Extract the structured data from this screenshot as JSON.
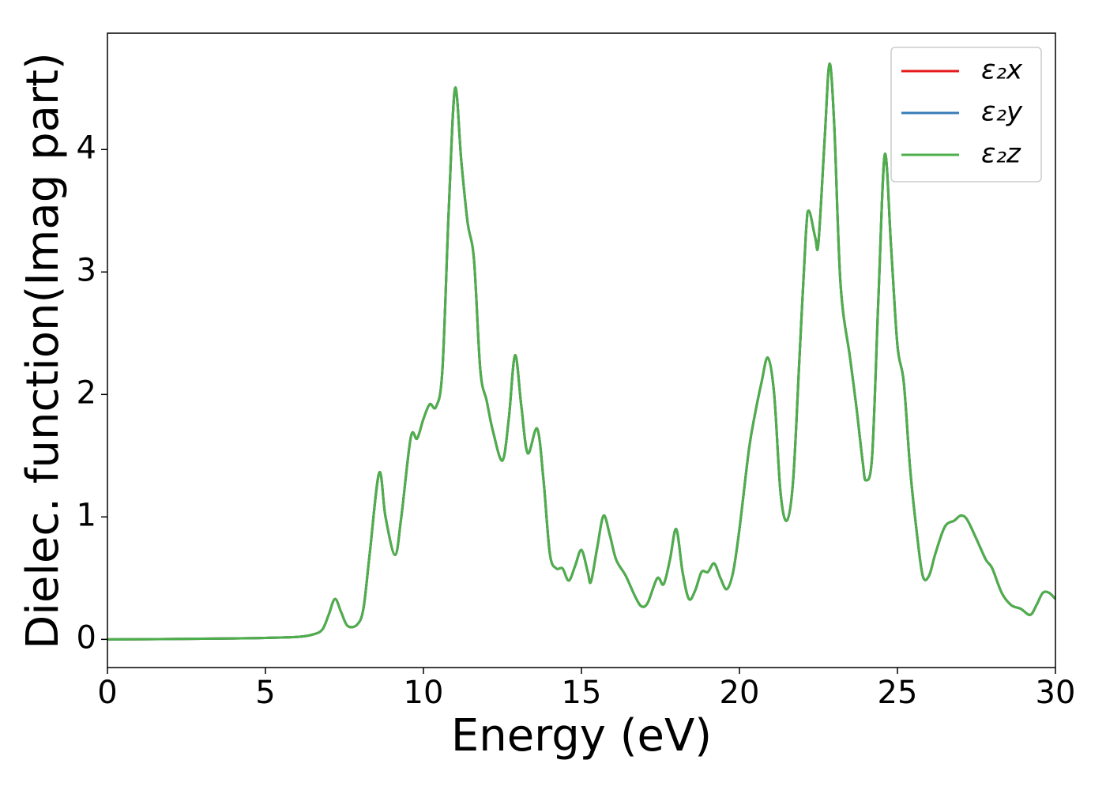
{
  "chart_data": {
    "type": "line",
    "xlabel": "Energy (eV)",
    "ylabel": "Dielec. function(Imag part)",
    "x": [
      0,
      2,
      4,
      5,
      6,
      6.5,
      6.8,
      7.0,
      7.2,
      7.4,
      7.6,
      7.9,
      8.1,
      8.3,
      8.6,
      8.8,
      9.1,
      9.3,
      9.6,
      9.8,
      10.0,
      10.2,
      10.4,
      10.6,
      10.8,
      11.0,
      11.2,
      11.4,
      11.6,
      11.8,
      12.0,
      12.2,
      12.5,
      12.7,
      12.9,
      13.1,
      13.3,
      13.6,
      13.8,
      14.0,
      14.2,
      14.4,
      14.6,
      14.8,
      15.0,
      15.2,
      15.3,
      15.5,
      15.7,
      15.9,
      16.1,
      16.4,
      16.7,
      16.9,
      17.1,
      17.4,
      17.6,
      17.8,
      18.0,
      18.2,
      18.4,
      18.6,
      18.8,
      19.0,
      19.2,
      19.4,
      19.6,
      19.8,
      20.0,
      20.3,
      20.5,
      20.7,
      20.9,
      21.1,
      21.3,
      21.5,
      21.7,
      21.9,
      22.1,
      22.2,
      22.4,
      22.5,
      22.7,
      22.85,
      23.0,
      23.2,
      23.5,
      23.7,
      23.9,
      24.0,
      24.2,
      24.4,
      24.6,
      24.8,
      25.0,
      25.2,
      25.4,
      25.6,
      25.8,
      26.0,
      26.2,
      26.5,
      26.8,
      27.0,
      27.2,
      27.5,
      27.8,
      28.0,
      28.3,
      28.6,
      28.9,
      29.2,
      29.4,
      29.6,
      29.8,
      30.0
    ],
    "series": [
      {
        "name": "ε₂x",
        "color": "#e41a1c",
        "values": [
          0,
          0.003,
          0.008,
          0.012,
          0.02,
          0.04,
          0.08,
          0.2,
          0.33,
          0.22,
          0.11,
          0.12,
          0.25,
          0.7,
          1.36,
          1.0,
          0.69,
          1.0,
          1.65,
          1.64,
          1.8,
          1.92,
          1.9,
          2.2,
          3.5,
          4.5,
          3.9,
          3.4,
          3.1,
          2.2,
          1.95,
          1.7,
          1.46,
          1.8,
          2.32,
          1.9,
          1.52,
          1.72,
          1.3,
          0.7,
          0.58,
          0.58,
          0.48,
          0.6,
          0.73,
          0.55,
          0.47,
          0.75,
          1.01,
          0.85,
          0.65,
          0.52,
          0.35,
          0.27,
          0.3,
          0.5,
          0.45,
          0.65,
          0.9,
          0.55,
          0.33,
          0.4,
          0.55,
          0.55,
          0.62,
          0.5,
          0.41,
          0.55,
          0.9,
          1.55,
          1.85,
          2.1,
          2.3,
          2.0,
          1.2,
          0.97,
          1.3,
          2.3,
          3.3,
          3.5,
          3.28,
          3.24,
          4.1,
          4.7,
          4.2,
          2.9,
          2.3,
          1.9,
          1.45,
          1.3,
          1.5,
          2.8,
          3.96,
          3.2,
          2.4,
          2.1,
          1.4,
          0.9,
          0.52,
          0.52,
          0.7,
          0.92,
          0.97,
          1.01,
          0.98,
          0.82,
          0.65,
          0.58,
          0.38,
          0.28,
          0.25,
          0.2,
          0.28,
          0.38,
          0.38,
          0.33
        ]
      },
      {
        "name": "ε₂y",
        "color": "#377eb8",
        "values": [
          0,
          0.003,
          0.008,
          0.012,
          0.02,
          0.04,
          0.08,
          0.2,
          0.33,
          0.22,
          0.11,
          0.12,
          0.25,
          0.7,
          1.36,
          1.0,
          0.69,
          1.0,
          1.65,
          1.64,
          1.8,
          1.92,
          1.9,
          2.2,
          3.5,
          4.5,
          3.9,
          3.4,
          3.1,
          2.2,
          1.95,
          1.7,
          1.46,
          1.8,
          2.32,
          1.9,
          1.52,
          1.72,
          1.3,
          0.7,
          0.58,
          0.58,
          0.48,
          0.6,
          0.73,
          0.55,
          0.47,
          0.75,
          1.01,
          0.85,
          0.65,
          0.52,
          0.35,
          0.27,
          0.3,
          0.5,
          0.45,
          0.65,
          0.9,
          0.55,
          0.33,
          0.4,
          0.55,
          0.55,
          0.62,
          0.5,
          0.41,
          0.55,
          0.9,
          1.55,
          1.85,
          2.1,
          2.3,
          2.0,
          1.2,
          0.97,
          1.3,
          2.3,
          3.3,
          3.5,
          3.28,
          3.24,
          4.1,
          4.7,
          4.2,
          2.9,
          2.3,
          1.9,
          1.45,
          1.3,
          1.5,
          2.8,
          3.96,
          3.2,
          2.4,
          2.1,
          1.4,
          0.9,
          0.52,
          0.52,
          0.7,
          0.92,
          0.97,
          1.01,
          0.98,
          0.82,
          0.65,
          0.58,
          0.38,
          0.28,
          0.25,
          0.2,
          0.28,
          0.38,
          0.38,
          0.33
        ]
      },
      {
        "name": "ε₂z",
        "color": "#4daf4a",
        "values": [
          0,
          0.003,
          0.008,
          0.012,
          0.02,
          0.04,
          0.08,
          0.2,
          0.33,
          0.22,
          0.11,
          0.12,
          0.25,
          0.7,
          1.36,
          1.0,
          0.69,
          1.0,
          1.65,
          1.64,
          1.8,
          1.92,
          1.9,
          2.2,
          3.5,
          4.5,
          3.9,
          3.4,
          3.1,
          2.2,
          1.95,
          1.7,
          1.46,
          1.8,
          2.32,
          1.9,
          1.52,
          1.72,
          1.3,
          0.7,
          0.58,
          0.58,
          0.48,
          0.6,
          0.73,
          0.55,
          0.47,
          0.75,
          1.01,
          0.85,
          0.65,
          0.52,
          0.35,
          0.27,
          0.3,
          0.5,
          0.45,
          0.65,
          0.9,
          0.55,
          0.33,
          0.4,
          0.55,
          0.55,
          0.62,
          0.5,
          0.41,
          0.55,
          0.9,
          1.55,
          1.85,
          2.1,
          2.3,
          2.0,
          1.2,
          0.97,
          1.3,
          2.3,
          3.3,
          3.5,
          3.28,
          3.24,
          4.1,
          4.7,
          4.2,
          2.9,
          2.3,
          1.9,
          1.45,
          1.3,
          1.5,
          2.8,
          3.96,
          3.2,
          2.4,
          2.1,
          1.4,
          0.9,
          0.52,
          0.52,
          0.7,
          0.92,
          0.97,
          1.01,
          0.98,
          0.82,
          0.65,
          0.58,
          0.38,
          0.28,
          0.25,
          0.2,
          0.28,
          0.38,
          0.38,
          0.33
        ]
      }
    ],
    "xlim": [
      0,
      30
    ],
    "xticks": [
      0,
      5,
      10,
      15,
      20,
      25,
      30
    ],
    "ylim": [
      -0.23,
      4.95
    ],
    "yticks": [
      0,
      1,
      2,
      3,
      4
    ],
    "legend": "upper right"
  }
}
